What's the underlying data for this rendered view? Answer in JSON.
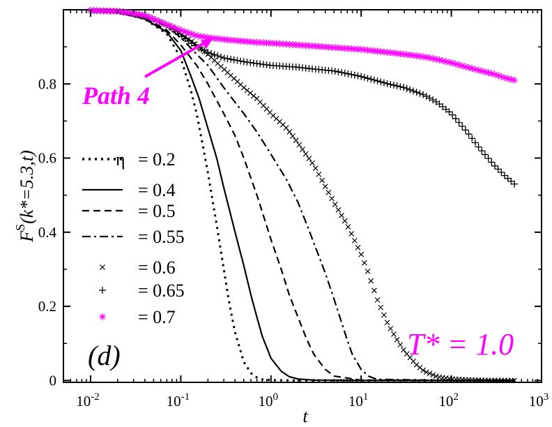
{
  "chart_data": {
    "type": "line",
    "x_scale": "log",
    "xlim": [
      0.005,
      1000
    ],
    "ylim": [
      -0.005,
      1.0
    ],
    "grid": false,
    "legend_placement": "left-middle",
    "xlabel": "t",
    "ylabel": "F^S(k*=5.3,t)",
    "ylabel_parts": {
      "main": "F",
      "sup": "S",
      "args": "(k*=5.3,t)"
    },
    "x_ticks": [
      {
        "value": 0.01,
        "base": "10",
        "exp": "-2"
      },
      {
        "value": 0.1,
        "base": "10",
        "exp": "-1"
      },
      {
        "value": 1,
        "base": "10",
        "exp": "0"
      },
      {
        "value": 10,
        "base": "10",
        "exp": "1"
      },
      {
        "value": 100,
        "base": "10",
        "exp": "2"
      },
      {
        "value": 1000,
        "base": "10",
        "exp": "3"
      }
    ],
    "y_ticks": [
      {
        "value": 0,
        "label": "0"
      },
      {
        "value": 0.2,
        "label": "0.2"
      },
      {
        "value": 0.4,
        "label": "0.4"
      },
      {
        "value": 0.6,
        "label": "0.6"
      },
      {
        "value": 0.8,
        "label": "0.8"
      }
    ],
    "legend_symbol": "η",
    "series": [
      {
        "name": "= 0.2",
        "legend_prefix": "η",
        "style": "dotted",
        "marker": "none",
        "color": "#000000",
        "x": [
          0.01,
          0.02,
          0.04,
          0.07,
          0.1,
          0.13,
          0.15,
          0.18,
          0.2,
          0.25,
          0.3,
          0.35,
          0.4,
          0.5,
          0.6,
          0.7,
          0.8,
          1.0,
          2.0,
          10,
          100,
          500
        ],
        "y": [
          0.998,
          0.993,
          0.975,
          0.935,
          0.87,
          0.78,
          0.72,
          0.62,
          0.56,
          0.42,
          0.3,
          0.2,
          0.13,
          0.05,
          0.02,
          0.008,
          0.003,
          0.001,
          0.0,
          0.0,
          0.0,
          0.0
        ]
      },
      {
        "name": "= 0.4",
        "style": "solid",
        "marker": "none",
        "color": "#000000",
        "x": [
          0.01,
          0.02,
          0.04,
          0.07,
          0.1,
          0.13,
          0.16,
          0.2,
          0.25,
          0.3,
          0.4,
          0.5,
          0.6,
          0.7,
          0.8,
          1.0,
          1.3,
          1.6,
          2.0,
          3.0,
          10,
          100,
          500
        ],
        "y": [
          0.998,
          0.993,
          0.975,
          0.94,
          0.89,
          0.82,
          0.76,
          0.68,
          0.6,
          0.52,
          0.4,
          0.31,
          0.23,
          0.17,
          0.12,
          0.06,
          0.025,
          0.01,
          0.004,
          0.001,
          0.0,
          0.0,
          0.0
        ]
      },
      {
        "name": "= 0.5",
        "style": "dashed",
        "marker": "none",
        "color": "#000000",
        "x": [
          0.01,
          0.02,
          0.04,
          0.07,
          0.1,
          0.15,
          0.2,
          0.3,
          0.4,
          0.5,
          0.7,
          1.0,
          1.3,
          1.6,
          2.0,
          2.5,
          3.0,
          4.0,
          5.0,
          10,
          100,
          500
        ],
        "y": [
          0.998,
          0.994,
          0.978,
          0.945,
          0.905,
          0.85,
          0.8,
          0.72,
          0.66,
          0.6,
          0.5,
          0.38,
          0.3,
          0.23,
          0.17,
          0.11,
          0.07,
          0.03,
          0.012,
          0.001,
          0.0,
          0.0
        ]
      },
      {
        "name": "= 0.55",
        "style": "dashdot",
        "marker": "none",
        "color": "#000000",
        "x": [
          0.01,
          0.02,
          0.04,
          0.07,
          0.1,
          0.15,
          0.2,
          0.3,
          0.5,
          0.7,
          1.0,
          1.5,
          2.0,
          2.5,
          3.0,
          4.0,
          5.0,
          6.0,
          7.0,
          8.0,
          10,
          12,
          15,
          100,
          500
        ],
        "y": [
          0.998,
          0.995,
          0.98,
          0.955,
          0.925,
          0.88,
          0.85,
          0.79,
          0.72,
          0.67,
          0.61,
          0.54,
          0.48,
          0.42,
          0.37,
          0.29,
          0.22,
          0.16,
          0.11,
          0.07,
          0.03,
          0.012,
          0.003,
          0.0,
          0.0
        ]
      },
      {
        "name": "= 0.6",
        "style": "markers",
        "marker": "x",
        "color": "#000000",
        "x": [
          0.01,
          0.02,
          0.04,
          0.07,
          0.1,
          0.15,
          0.2,
          0.3,
          0.5,
          0.7,
          1.0,
          1.5,
          2.0,
          3.0,
          5.0,
          7.0,
          10,
          12,
          15,
          20,
          25,
          30,
          40,
          50,
          70,
          100,
          150,
          200,
          300,
          500
        ],
        "y": [
          0.998,
          0.996,
          0.985,
          0.96,
          0.935,
          0.905,
          0.88,
          0.84,
          0.79,
          0.76,
          0.72,
          0.68,
          0.64,
          0.58,
          0.48,
          0.42,
          0.34,
          0.29,
          0.22,
          0.15,
          0.11,
          0.08,
          0.045,
          0.025,
          0.01,
          0.004,
          0.002,
          0.001,
          0.0,
          0.0
        ]
      },
      {
        "name": "= 0.65",
        "style": "markers",
        "marker": "plus",
        "color": "#000000",
        "x": [
          0.01,
          0.02,
          0.04,
          0.07,
          0.1,
          0.15,
          0.2,
          0.3,
          0.5,
          0.7,
          1.0,
          2.0,
          3.0,
          5.0,
          10,
          20,
          30,
          50,
          70,
          100,
          150,
          200,
          300,
          400,
          500
        ],
        "y": [
          0.998,
          0.996,
          0.985,
          0.96,
          0.93,
          0.9,
          0.885,
          0.87,
          0.86,
          0.855,
          0.85,
          0.845,
          0.84,
          0.835,
          0.82,
          0.8,
          0.79,
          0.77,
          0.75,
          0.72,
          0.67,
          0.63,
          0.58,
          0.55,
          0.53
        ]
      },
      {
        "name": "= 0.7",
        "style": "markers",
        "marker": "star",
        "color": "#ff00ff",
        "x": [
          0.01,
          0.02,
          0.04,
          0.07,
          0.1,
          0.15,
          0.2,
          0.3,
          0.5,
          0.7,
          1.0,
          2.0,
          3.0,
          5.0,
          10,
          20,
          30,
          50,
          70,
          100,
          150,
          200,
          300,
          400,
          500
        ],
        "y": [
          0.998,
          0.996,
          0.985,
          0.96,
          0.945,
          0.93,
          0.925,
          0.92,
          0.915,
          0.912,
          0.91,
          0.905,
          0.902,
          0.898,
          0.893,
          0.885,
          0.88,
          0.873,
          0.866,
          0.857,
          0.845,
          0.837,
          0.826,
          0.816,
          0.81
        ]
      }
    ],
    "annotations": [
      {
        "text": "Path 4",
        "color": "#ff00ff",
        "style": "bold-italic"
      },
      {
        "text": "T* = 1.0",
        "color": "#ff00ff",
        "style": "italic"
      },
      {
        "text": "(d)",
        "color": "#000000",
        "style": "italic"
      }
    ],
    "arrow": {
      "color": "#ff00ff",
      "from_data": [
        0.08,
        0.81
      ],
      "to_data": [
        0.28,
        0.92
      ]
    }
  }
}
